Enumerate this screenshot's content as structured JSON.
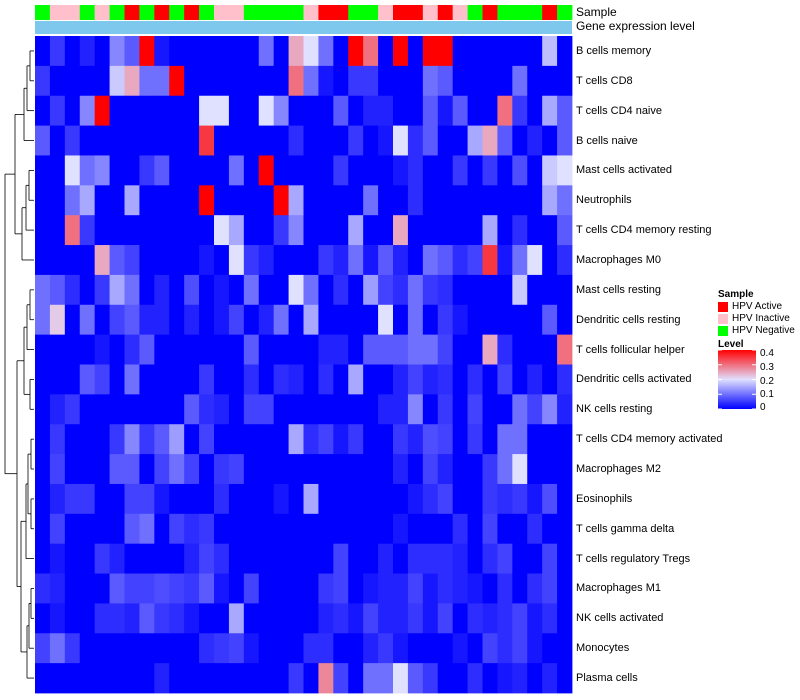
{
  "chart_data": {
    "type": "heatmap",
    "title": "",
    "value_range": [
      0,
      0.4
    ],
    "colors": {
      "low": "#0000ff",
      "mid": "#e0e0ff",
      "high": "#ff0000"
    },
    "annotation_tracks": [
      {
        "name": "Sample",
        "label": "Sample"
      },
      {
        "name": "Gene expression level",
        "label": "Gene expression level",
        "color": "#7ec8ee"
      }
    ],
    "sample_groups": [
      {
        "name": "HPV Active",
        "color": "#ff0000"
      },
      {
        "name": "HPV Inactive",
        "color": "#ffc0cb"
      },
      {
        "name": "HPV Negative",
        "color": "#00ff00"
      }
    ],
    "sample_annotation": [
      "HPV Negative",
      "HPV Inactive",
      "HPV Inactive",
      "HPV Negative",
      "HPV Inactive",
      "HPV Negative",
      "HPV Active",
      "HPV Negative",
      "HPV Active",
      "HPV Negative",
      "HPV Active",
      "HPV Negative",
      "HPV Inactive",
      "HPV Inactive",
      "HPV Negative",
      "HPV Negative",
      "HPV Negative",
      "HPV Negative",
      "HPV Inactive",
      "HPV Active",
      "HPV Active",
      "HPV Negative",
      "HPV Negative",
      "HPV Inactive",
      "HPV Active",
      "HPV Active",
      "HPV Inactive",
      "HPV Active",
      "HPV Inactive",
      "HPV Negative",
      "HPV Active",
      "HPV Negative",
      "HPV Negative",
      "HPV Negative",
      "HPV Active",
      "HPV Negative"
    ],
    "rows": [
      "B cells memory",
      "T cells CD8",
      "T cells CD4 naive",
      "B cells naive",
      "Mast cells activated",
      "Neutrophils",
      "T cells CD4 memory resting",
      "Macrophages M0",
      "Mast cells resting",
      "Dendritic cells resting",
      "T cells follicular helper",
      "Dendritic cells activated",
      "NK cells resting",
      "T cells CD4 memory activated",
      "Macrophages M2",
      "Eosinophils",
      "T cells gamma delta",
      "T cells regulatory  Tregs",
      "Macrophages M1",
      "NK cells activated",
      "Monocytes",
      "Plasma cells"
    ],
    "values": [
      [
        0,
        0.05,
        0,
        0.03,
        0,
        0.12,
        0.08,
        0.4,
        0.02,
        0,
        0,
        0,
        0,
        0,
        0,
        0.1,
        0,
        0.25,
        0.2,
        0.1,
        0,
        0.4,
        0.3,
        0,
        0.4,
        0,
        0.4,
        0.4,
        0,
        0,
        0,
        0,
        0,
        0,
        0.17,
        0
      ],
      [
        0.05,
        0,
        0,
        0,
        0,
        0.18,
        0.25,
        0.1,
        0.1,
        0.4,
        0,
        0,
        0,
        0,
        0,
        0,
        0,
        0.3,
        0.1,
        0.02,
        0,
        0.05,
        0.05,
        0,
        0,
        0,
        0.1,
        0.08,
        0,
        0,
        0,
        0,
        0.1,
        0,
        0,
        0
      ],
      [
        0,
        0.05,
        0,
        0.12,
        0.4,
        0,
        0,
        0,
        0,
        0,
        0,
        0.2,
        0.2,
        0,
        0,
        0.2,
        0.12,
        0,
        0,
        0,
        0.08,
        0,
        0.03,
        0.03,
        0,
        0,
        0.08,
        0.02,
        0.08,
        0,
        0,
        0.3,
        0.05,
        0,
        0.15,
        0.08
      ],
      [
        0.08,
        0,
        0.05,
        0,
        0,
        0,
        0,
        0,
        0,
        0,
        0,
        0.35,
        0,
        0,
        0,
        0,
        0,
        0.04,
        0,
        0,
        0,
        0.05,
        0,
        0.02,
        0.2,
        0.04,
        0.08,
        0,
        0,
        0.15,
        0.25,
        0.08,
        0,
        0.03,
        0,
        0.08
      ],
      [
        0,
        0,
        0.2,
        0.1,
        0.12,
        0,
        0,
        0.05,
        0.08,
        0,
        0,
        0,
        0,
        0.1,
        0,
        0.4,
        0,
        0,
        0,
        0,
        0.05,
        0,
        0,
        0,
        0.02,
        0.04,
        0,
        0,
        0.05,
        0,
        0.05,
        0,
        0.07,
        0,
        0.18,
        0.2
      ],
      [
        0,
        0,
        0.1,
        0.15,
        0,
        0,
        0.15,
        0,
        0,
        0,
        0,
        0.4,
        0,
        0,
        0,
        0,
        0.4,
        0.15,
        0,
        0,
        0,
        0,
        0.1,
        0,
        0,
        0.04,
        0,
        0,
        0,
        0,
        0,
        0,
        0,
        0,
        0.15,
        0.1
      ],
      [
        0,
        0,
        0.3,
        0.05,
        0,
        0,
        0,
        0,
        0,
        0,
        0,
        0,
        0.2,
        0.15,
        0,
        0,
        0.05,
        0.12,
        0,
        0,
        0,
        0.15,
        0,
        0,
        0.25,
        0,
        0,
        0,
        0,
        0,
        0.15,
        0,
        0.04,
        0,
        0,
        0.08
      ],
      [
        0,
        0,
        0,
        0,
        0.25,
        0.08,
        0.06,
        0,
        0,
        0,
        0,
        0.02,
        0,
        0.2,
        0.05,
        0.03,
        0,
        0,
        0,
        0.05,
        0.03,
        0.1,
        0.02,
        0.08,
        0.03,
        0,
        0.1,
        0.08,
        0.04,
        0.06,
        0.35,
        0.02,
        0.1,
        0.2,
        0,
        0.04
      ],
      [
        0.1,
        0.08,
        0.04,
        0,
        0.05,
        0.15,
        0.1,
        0,
        0.03,
        0,
        0.07,
        0,
        0.02,
        0,
        0.1,
        0,
        0,
        0.2,
        0.1,
        0,
        0.04,
        0,
        0.14,
        0.06,
        0.04,
        0.1,
        0.05,
        0.04,
        0,
        0,
        0,
        0,
        0.18,
        0,
        0,
        0
      ],
      [
        0.1,
        0.22,
        0,
        0.1,
        0,
        0.06,
        0.08,
        0.03,
        0.03,
        0,
        0.03,
        0,
        0.02,
        0.06,
        0,
        0.03,
        0.1,
        0,
        0.15,
        0,
        0,
        0,
        0,
        0.2,
        0,
        0.1,
        0,
        0.05,
        0.02,
        0,
        0,
        0,
        0,
        0,
        0.08,
        0
      ],
      [
        0,
        0,
        0,
        0,
        0.02,
        0,
        0.04,
        0.08,
        0,
        0,
        0,
        0,
        0,
        0,
        0.08,
        0,
        0,
        0,
        0,
        0.03,
        0.03,
        0,
        0.08,
        0.08,
        0.08,
        0.1,
        0.1,
        0.06,
        0,
        0,
        0.25,
        0.04,
        0,
        0,
        0,
        0.3
      ],
      [
        0,
        0,
        0,
        0.08,
        0.06,
        0,
        0.1,
        0,
        0,
        0,
        0,
        0.05,
        0,
        0,
        0.04,
        0,
        0.04,
        0.03,
        0,
        0.04,
        0,
        0.15,
        0,
        0,
        0.03,
        0.06,
        0.03,
        0.04,
        0,
        0.04,
        0,
        0.06,
        0,
        0.03,
        0,
        0.04
      ],
      [
        0,
        0.03,
        0.05,
        0,
        0,
        0,
        0,
        0,
        0,
        0,
        0.08,
        0.04,
        0.03,
        0,
        0.06,
        0.06,
        0,
        0,
        0,
        0,
        0,
        0,
        0,
        0.03,
        0.03,
        0.12,
        0,
        0.05,
        0,
        0.06,
        0,
        0,
        0.1,
        0.06,
        0.12,
        0.03
      ],
      [
        0,
        0.05,
        0,
        0,
        0,
        0.05,
        0.12,
        0.05,
        0.08,
        0.14,
        0,
        0.06,
        0,
        0,
        0,
        0,
        0,
        0.15,
        0.04,
        0.06,
        0.02,
        0.05,
        0,
        0,
        0.05,
        0.03,
        0.07,
        0.06,
        0,
        0.05,
        0,
        0.1,
        0.1,
        0,
        0,
        0
      ],
      [
        0,
        0.06,
        0,
        0,
        0,
        0.08,
        0.08,
        0,
        0.06,
        0.1,
        0.06,
        0,
        0.05,
        0.06,
        0,
        0,
        0,
        0,
        0,
        0,
        0,
        0,
        0,
        0,
        0.03,
        0,
        0.06,
        0.03,
        0,
        0,
        0.05,
        0.1,
        0.2,
        0,
        0,
        0
      ],
      [
        0,
        0.03,
        0.05,
        0.05,
        0,
        0,
        0.06,
        0.06,
        0.02,
        0,
        0,
        0,
        0.04,
        0,
        0,
        0,
        0.02,
        0,
        0.15,
        0,
        0,
        0,
        0,
        0,
        0,
        0.02,
        0.04,
        0.06,
        0,
        0,
        0.05,
        0.04,
        0.05,
        0.02,
        0.07,
        0
      ],
      [
        0,
        0.06,
        0,
        0,
        0,
        0,
        0.08,
        0.1,
        0,
        0.06,
        0.04,
        0.05,
        0,
        0,
        0,
        0,
        0,
        0,
        0,
        0,
        0,
        0,
        0,
        0,
        0.02,
        0,
        0,
        0,
        0.04,
        0,
        0.06,
        0,
        0,
        0.04,
        0,
        0
      ],
      [
        0,
        0.02,
        0,
        0,
        0.05,
        0.03,
        0,
        0,
        0,
        0,
        0.03,
        0.06,
        0.04,
        0,
        0,
        0,
        0,
        0,
        0,
        0,
        0.06,
        0,
        0,
        0.03,
        0,
        0.04,
        0.04,
        0.04,
        0.03,
        0,
        0.04,
        0.06,
        0,
        0,
        0.06,
        0
      ],
      [
        0.04,
        0.03,
        0,
        0,
        0,
        0.08,
        0.06,
        0.06,
        0.07,
        0.06,
        0.05,
        0.08,
        0.02,
        0,
        0.06,
        0,
        0,
        0,
        0,
        0.05,
        0.06,
        0,
        0.02,
        0.03,
        0.03,
        0.06,
        0.02,
        0.04,
        0.03,
        0.02,
        0,
        0.04,
        0,
        0.04,
        0.06,
        0
      ],
      [
        0,
        0.02,
        0,
        0,
        0.04,
        0.04,
        0.03,
        0.08,
        0.05,
        0.04,
        0.02,
        0,
        0,
        0.15,
        0,
        0,
        0,
        0,
        0,
        0.03,
        0.04,
        0.02,
        0.06,
        0.03,
        0.03,
        0.05,
        0.02,
        0.06,
        0,
        0.04,
        0.03,
        0.04,
        0.06,
        0.02,
        0.04,
        0
      ],
      [
        0.06,
        0.1,
        0.05,
        0,
        0,
        0,
        0,
        0,
        0,
        0,
        0,
        0.04,
        0.05,
        0.06,
        0.02,
        0,
        0,
        0,
        0.04,
        0.04,
        0,
        0,
        0.03,
        0.05,
        0.02,
        0,
        0,
        0,
        0.02,
        0,
        0.06,
        0.04,
        0.06,
        0.02,
        0,
        0
      ],
      [
        0,
        0,
        0,
        0,
        0,
        0,
        0,
        0,
        0.03,
        0,
        0,
        0,
        0,
        0,
        0,
        0,
        0,
        0.05,
        0,
        0.28,
        0.06,
        0,
        0.1,
        0.1,
        0.2,
        0.08,
        0.05,
        0,
        0,
        0.04,
        0,
        0.02,
        0.03,
        0,
        0.03,
        0
      ]
    ],
    "legend": {
      "sample_title": "Sample",
      "level_title": "Level",
      "level_ticks": [
        "0.4",
        "0.3",
        "0.2",
        "0.1",
        "0"
      ],
      "level_tick_values": [
        0.4,
        0.3,
        0.2,
        0.1,
        0
      ]
    }
  }
}
